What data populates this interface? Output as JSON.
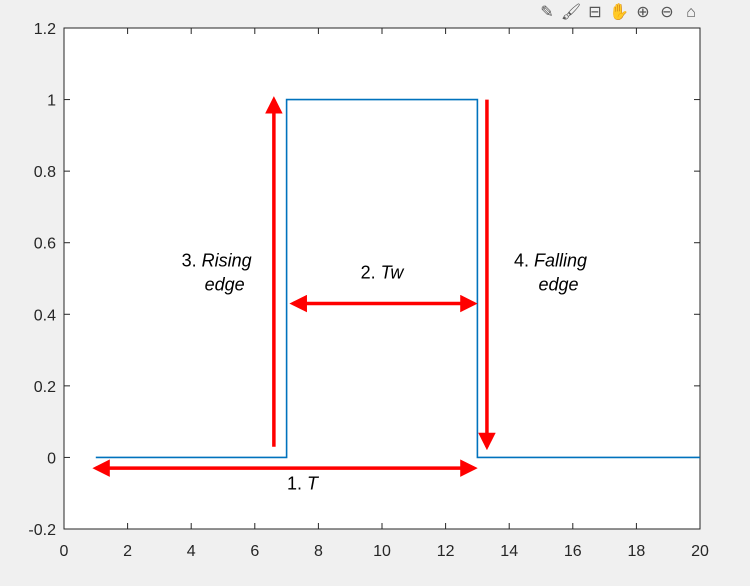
{
  "toolbar": [
    {
      "name": "edit-icon",
      "glyph": "✎"
    },
    {
      "name": "brush-icon",
      "glyph": "🖌"
    },
    {
      "name": "data-cursor-icon",
      "glyph": "⊟"
    },
    {
      "name": "pan-hand-icon",
      "glyph": "✋"
    },
    {
      "name": "zoom-in-icon",
      "glyph": "⊕"
    },
    {
      "name": "zoom-out-icon",
      "glyph": "⊖"
    },
    {
      "name": "home-icon",
      "glyph": "⌂"
    }
  ],
  "chart_data": {
    "type": "line",
    "title": "",
    "xlabel": "",
    "ylabel": "",
    "xlim": [
      0,
      20
    ],
    "ylim": [
      -0.2,
      1.2
    ],
    "xticks": [
      0,
      2,
      4,
      6,
      8,
      10,
      12,
      14,
      16,
      18,
      20
    ],
    "yticks": [
      -0.2,
      0,
      0.2,
      0.4,
      0.6,
      0.8,
      1,
      1.2
    ],
    "xtick_labels": [
      "0",
      "2",
      "4",
      "6",
      "8",
      "10",
      "12",
      "14",
      "16",
      "18",
      "20"
    ],
    "ytick_labels": [
      "-0.2",
      "0",
      "0.2",
      "0.4",
      "0.6",
      "0.8",
      "1",
      "1.2"
    ],
    "grid": false,
    "series": [
      {
        "color": "#0072bd",
        "x": [
          1,
          7,
          7,
          13,
          13,
          20
        ],
        "y": [
          0,
          0,
          1,
          1,
          0,
          0
        ]
      }
    ],
    "annotations": [
      {
        "number": "1.",
        "text": "T",
        "arrow": "double",
        "from": [
          1,
          -0.03
        ],
        "to": [
          12.9,
          -0.03
        ],
        "label_at": [
          7.5,
          -0.09
        ]
      },
      {
        "number": "2.",
        "text": "Tw",
        "arrow": "double",
        "from": [
          7.2,
          0.43
        ],
        "to": [
          12.9,
          0.43
        ],
        "label_at": [
          10,
          0.5
        ]
      },
      {
        "number": "3.",
        "text": "Rising",
        "line2": "edge",
        "arrow": "up",
        "from": [
          6.6,
          0.03
        ],
        "to": [
          6.6,
          1.0
        ],
        "label_at": [
          4.8,
          0.5
        ]
      },
      {
        "number": "4.",
        "text": "Falling",
        "line2": "edge",
        "arrow": "down",
        "from": [
          13.3,
          1.0
        ],
        "to": [
          13.3,
          0.03
        ],
        "label_at": [
          15.3,
          0.5
        ]
      }
    ],
    "arrow_color": "#ff0000"
  }
}
